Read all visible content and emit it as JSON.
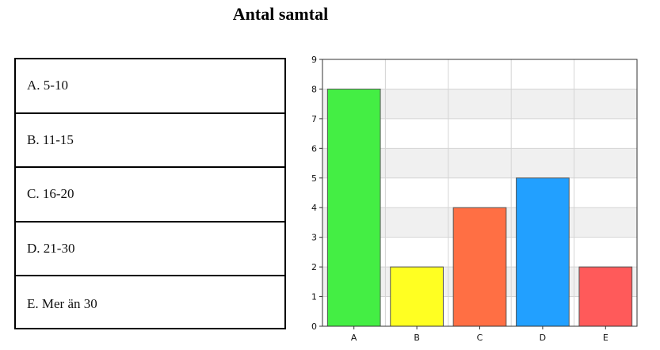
{
  "page": {
    "title": "Antal samtal"
  },
  "legend": {
    "items": [
      {
        "label": "A. 5-10"
      },
      {
        "label": "B. 11-15"
      },
      {
        "label": "C. 16-20"
      },
      {
        "label": "D. 21-30"
      },
      {
        "label": "E. Mer än 30"
      }
    ]
  },
  "chart_data": {
    "type": "bar",
    "title": "Antal samtal",
    "xlabel": "",
    "ylabel": "",
    "categories": [
      "A",
      "B",
      "C",
      "D",
      "E"
    ],
    "values": [
      8,
      2,
      4,
      5,
      2
    ],
    "colors": [
      "#44ee44",
      "#ffff22",
      "#ff6f44",
      "#22a0ff",
      "#ff5a5a"
    ],
    "ylim": [
      0,
      9
    ],
    "yticks": [
      0,
      1,
      2,
      3,
      4,
      5,
      6,
      7,
      8,
      9
    ],
    "grid": true,
    "band_colors": [
      "#ffffff",
      "#f0f0f0"
    ],
    "legend": "left"
  }
}
